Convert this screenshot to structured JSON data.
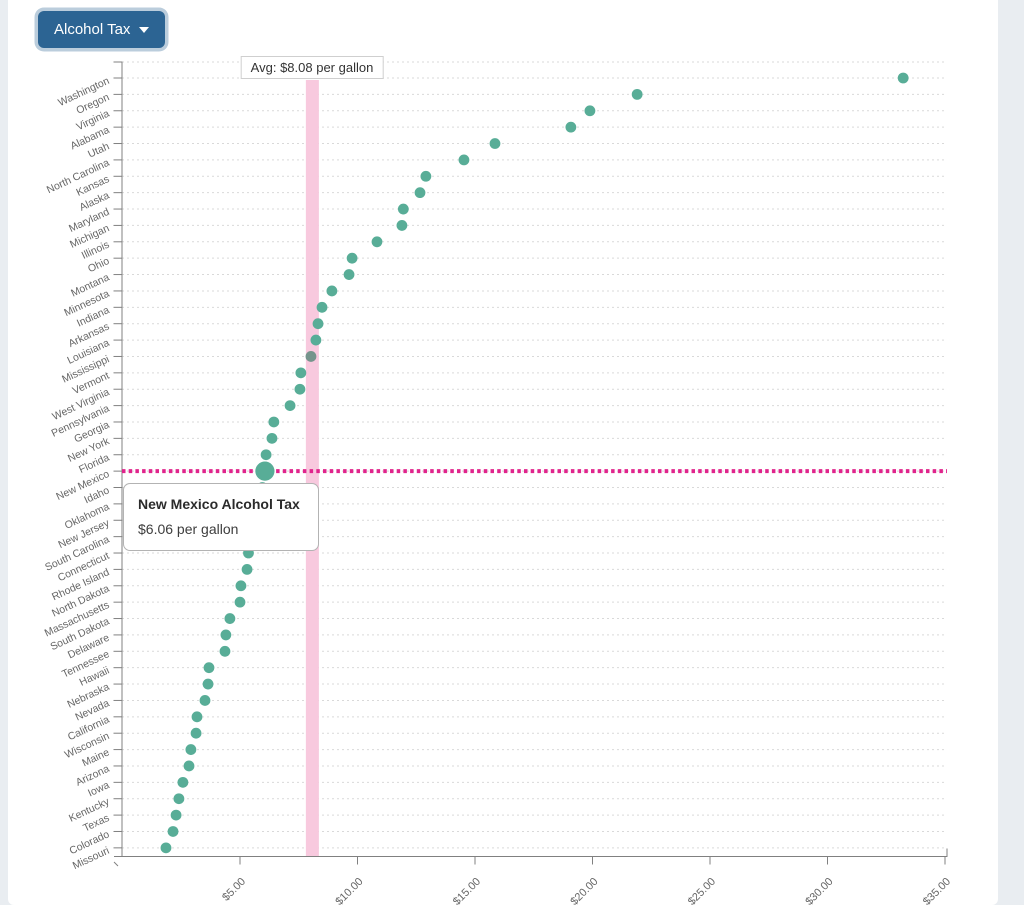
{
  "page": {
    "background_color": "#e9edf1",
    "card_color": "#ffffff"
  },
  "toolbar": {
    "dropdown_label": "Alcohol Tax",
    "button_color": "#2c6493"
  },
  "tooltip": {
    "title": "New Mexico Alcohol Tax",
    "value": "$6.06 per gallon"
  },
  "chart_data": {
    "type": "scatter",
    "orientation": "horizontal-dot-plot",
    "title": "",
    "xlabel": "",
    "ylabel": "",
    "xlim": [
      0,
      35.2
    ],
    "grid": "dotted-horizontal-per-row",
    "legend_position": "none",
    "x_ticks": [
      {
        "value": 5,
        "label": "$5.00"
      },
      {
        "value": 10,
        "label": "$10.00"
      },
      {
        "value": 15,
        "label": "$15.00"
      },
      {
        "value": 20,
        "label": "$20.00"
      },
      {
        "value": 25,
        "label": "$25.00"
      },
      {
        "value": 30,
        "label": "$30.00"
      },
      {
        "value": 35,
        "label": "$35.00"
      }
    ],
    "average": {
      "value": 8.08,
      "label": "Avg: $8.08 per gallon"
    },
    "highlight_state": "New Mexico",
    "muted_state": "Mississippi",
    "points": [
      {
        "state": "Washington",
        "value": 33.22
      },
      {
        "state": "Oregon",
        "value": 21.9
      },
      {
        "state": "Virginia",
        "value": 19.89
      },
      {
        "state": "Alabama",
        "value": 19.08
      },
      {
        "state": "Utah",
        "value": 15.85
      },
      {
        "state": "North Carolina",
        "value": 14.53
      },
      {
        "state": "Kansas",
        "value": 12.91
      },
      {
        "state": "Alaska",
        "value": 12.66
      },
      {
        "state": "Maryland",
        "value": 11.95
      },
      {
        "state": "Michigan",
        "value": 11.89
      },
      {
        "state": "Illinois",
        "value": 10.83
      },
      {
        "state": "Ohio",
        "value": 9.77
      },
      {
        "state": "Montana",
        "value": 9.64
      },
      {
        "state": "Minnesota",
        "value": 8.91
      },
      {
        "state": "Indiana",
        "value": 8.49
      },
      {
        "state": "Arkansas",
        "value": 8.32
      },
      {
        "state": "Louisiana",
        "value": 8.23
      },
      {
        "state": "Mississippi",
        "value": 8.02
      },
      {
        "state": "Vermont",
        "value": 7.59
      },
      {
        "state": "West Virginia",
        "value": 7.55
      },
      {
        "state": "Pennsylvania",
        "value": 7.13
      },
      {
        "state": "Georgia",
        "value": 6.44
      },
      {
        "state": "New York",
        "value": 6.36
      },
      {
        "state": "Florida",
        "value": 6.11
      },
      {
        "state": "New Mexico",
        "value": 6.06
      },
      {
        "state": "Idaho",
        "value": 5.95
      },
      {
        "state": "Oklahoma",
        "value": 5.8
      },
      {
        "state": "New Jersey",
        "value": 5.62
      },
      {
        "state": "South Carolina",
        "value": 5.48
      },
      {
        "state": "Connecticut",
        "value": 5.36
      },
      {
        "state": "Rhode Island",
        "value": 5.3
      },
      {
        "state": "North Dakota",
        "value": 5.04
      },
      {
        "state": "Massachusetts",
        "value": 5.0
      },
      {
        "state": "South Dakota",
        "value": 4.57
      },
      {
        "state": "Delaware",
        "value": 4.4
      },
      {
        "state": "Tennessee",
        "value": 4.36
      },
      {
        "state": "Hawaii",
        "value": 3.68
      },
      {
        "state": "Nebraska",
        "value": 3.64
      },
      {
        "state": "Nevada",
        "value": 3.51
      },
      {
        "state": "California",
        "value": 3.17
      },
      {
        "state": "Wisconsin",
        "value": 3.13
      },
      {
        "state": "Maine",
        "value": 2.91
      },
      {
        "state": "Arizona",
        "value": 2.83
      },
      {
        "state": "Iowa",
        "value": 2.57
      },
      {
        "state": "Kentucky",
        "value": 2.4
      },
      {
        "state": "Texas",
        "value": 2.28
      },
      {
        "state": "Colorado",
        "value": 2.15
      },
      {
        "state": "Missouri",
        "value": 1.85
      }
    ],
    "colors": {
      "dot": "#58ad97",
      "dot_muted": "#75948c",
      "average_band": "#f8c9de",
      "highlight_line": "#e0248c",
      "grid_line": "#d9d9d9",
      "axis": "#808080",
      "tick_text": "#666666"
    }
  }
}
